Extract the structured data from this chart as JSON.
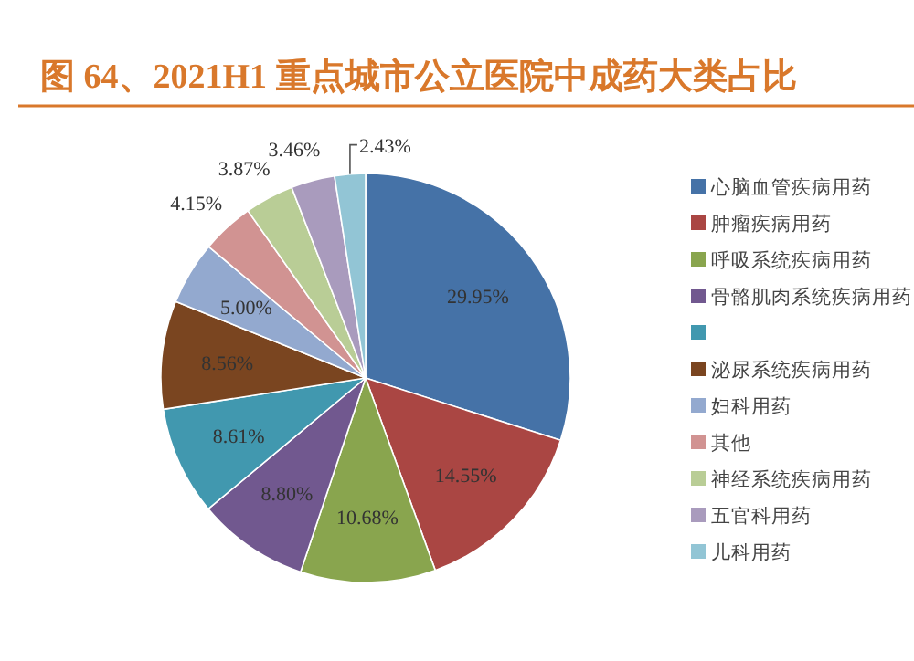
{
  "chart_data": {
    "type": "pie",
    "title": "图 64、2021H1 重点城市公立医院中成药大类占比",
    "categories": [
      "心脑血管疾病用药",
      "肿瘤疾病用药",
      "呼吸系统疾病用药",
      "骨骼肌肉系统疾病用药",
      null,
      "泌尿系统疾病用药",
      "妇科用药",
      "其他",
      "神经系统疾病用药",
      "五官科用药",
      "儿科用药"
    ],
    "values": [
      29.95,
      14.55,
      10.68,
      8.8,
      8.61,
      8.56,
      5.0,
      4.15,
      3.87,
      3.46,
      2.43
    ],
    "colors": [
      "#4572a7",
      "#aa4643",
      "#89a54e",
      "#71588f",
      "#4198af",
      "#7a4520",
      "#93a9cf",
      "#d19392",
      "#b9cd96",
      "#a99bbd",
      "#92c5d5"
    ],
    "value_labels": [
      "29.95%",
      "14.55%",
      "10.68%",
      "8.80%",
      "8.61%",
      "8.56%",
      "5.00%",
      "4.15%",
      "3.87%",
      "3.46%",
      "2.43%"
    ],
    "legend": "right"
  }
}
